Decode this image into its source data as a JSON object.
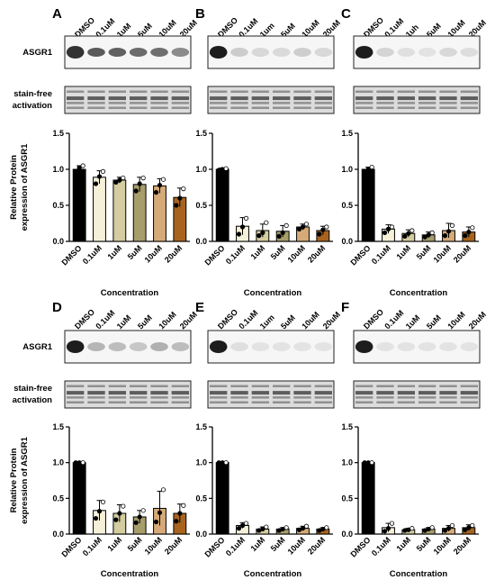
{
  "figure": {
    "row_labels": {
      "blot": "ASGR1",
      "stain": "stain-free activation"
    },
    "ylabel": "Relative Protein expression of ASGR1",
    "xlabel": "Concentration",
    "colors": {
      "DMSO": "#000000",
      "0.1uM": "#f5f0d8",
      "1uM": "#d3cd9f",
      "5uM": "#a69d6b",
      "10uM": "#d6aa78",
      "20uM": "#a8641e"
    }
  },
  "chart_data": [
    {
      "panel": "A",
      "type": "bar",
      "lanes": [
        "DMSO",
        "0.1uM",
        "1uM",
        "5uM",
        "10uM",
        "20uM"
      ],
      "categories": [
        "DMSO",
        "0.1uM",
        "1uM",
        "5uM",
        "10uM",
        "20uM"
      ],
      "values": [
        1.0,
        0.89,
        0.85,
        0.79,
        0.77,
        0.61
      ],
      "errors": [
        0.05,
        0.09,
        0.04,
        0.1,
        0.1,
        0.13
      ],
      "points": [
        [
          0.97,
          1.02,
          1.05
        ],
        [
          0.8,
          0.9,
          0.97
        ],
        [
          0.82,
          0.85,
          0.88
        ],
        [
          0.7,
          0.8,
          0.88
        ],
        [
          0.68,
          0.78,
          0.86
        ],
        [
          0.5,
          0.6,
          0.73
        ]
      ],
      "ylim": [
        0,
        1.5
      ],
      "yticks": [
        0,
        0.5,
        1.0,
        1.5
      ],
      "ytick_labels": [
        "0.0",
        "0.5",
        "1.0",
        "1.5"
      ],
      "xlabel": "Concentration",
      "ylabel": "Relative Protein expression of ASGR1"
    },
    {
      "panel": "B",
      "type": "bar",
      "lanes": [
        "DMSO",
        "0.1uM",
        "1um",
        "5uM",
        "10uM",
        "20uM"
      ],
      "categories": [
        "DMSO",
        "0.1uM",
        "1uM",
        "5uM",
        "10uM",
        "20uM"
      ],
      "values": [
        1.0,
        0.21,
        0.15,
        0.14,
        0.2,
        0.15
      ],
      "errors": [
        0.02,
        0.12,
        0.09,
        0.08,
        0.04,
        0.06
      ],
      "points": [
        [
          0.99,
          1.0,
          1.01
        ],
        [
          0.1,
          0.2,
          0.32
        ],
        [
          0.08,
          0.12,
          0.26
        ],
        [
          0.07,
          0.12,
          0.22
        ],
        [
          0.17,
          0.2,
          0.24
        ],
        [
          0.1,
          0.16,
          0.2
        ]
      ],
      "ylim": [
        0,
        1.5
      ],
      "yticks": [
        0,
        0.5,
        1.0,
        1.5
      ],
      "ytick_labels": [
        "0.0",
        "0.5",
        "1.0",
        "1.5"
      ],
      "xlabel": "Concentration"
    },
    {
      "panel": "C",
      "type": "bar",
      "lanes": [
        "DMSO",
        "0.1uM",
        "1uh",
        "5uM",
        "10uM",
        "20uM"
      ],
      "categories": [
        "DMSO",
        "0.1uM",
        "1uM",
        "5uM",
        "10uM",
        "20uM"
      ],
      "values": [
        1.0,
        0.17,
        0.11,
        0.09,
        0.15,
        0.13
      ],
      "errors": [
        0.03,
        0.06,
        0.05,
        0.04,
        0.1,
        0.07
      ],
      "points": [
        [
          0.97,
          1.0,
          1.03
        ],
        [
          0.12,
          0.17,
          0.2
        ],
        [
          0.07,
          0.11,
          0.15
        ],
        [
          0.06,
          0.09,
          0.12
        ],
        [
          0.08,
          0.14,
          0.22
        ],
        [
          0.08,
          0.13,
          0.19
        ]
      ],
      "ylim": [
        0,
        1.5
      ],
      "yticks": [
        0,
        0.5,
        1.0,
        1.5
      ],
      "ytick_labels": [
        "0.0",
        "0.5",
        "1.0",
        "1.5"
      ],
      "xlabel": "Concentration"
    },
    {
      "panel": "D",
      "type": "bar",
      "lanes": [
        "DMSO",
        "0.1uM",
        "1uM",
        "5uM",
        "10uM",
        "20uM"
      ],
      "categories": [
        "DMSO",
        "0.1uM",
        "1uM",
        "5uM",
        "10uM",
        "20uM"
      ],
      "values": [
        1.0,
        0.33,
        0.29,
        0.24,
        0.36,
        0.29
      ],
      "errors": [
        0.0,
        0.14,
        0.12,
        0.09,
        0.24,
        0.13
      ],
      "points": [
        [
          1.0,
          1.0,
          1.0
        ],
        [
          0.22,
          0.32,
          0.45
        ],
        [
          0.2,
          0.29,
          0.39
        ],
        [
          0.16,
          0.24,
          0.33
        ],
        [
          0.17,
          0.3,
          0.62
        ],
        [
          0.18,
          0.29,
          0.4
        ]
      ],
      "ylim": [
        0,
        1.5
      ],
      "yticks": [
        0,
        0.5,
        1.0,
        1.5
      ],
      "ytick_labels": [
        "0.0",
        "0.5",
        "1.0",
        "1.5"
      ],
      "xlabel": "Concentration",
      "ylabel": "Relative Protein expression of ASGR1"
    },
    {
      "panel": "E",
      "type": "bar",
      "lanes": [
        "DMSO",
        "0.1uM",
        "1um",
        "5uM",
        "10uM",
        "20uM"
      ],
      "categories": [
        "DMSO",
        "0.1uM",
        "1uM",
        "5uM",
        "10uM",
        "20uM"
      ],
      "values": [
        1.0,
        0.12,
        0.07,
        0.07,
        0.08,
        0.07
      ],
      "errors": [
        0.0,
        0.04,
        0.03,
        0.02,
        0.03,
        0.02
      ],
      "points": [
        [
          1.0,
          1.0,
          1.0
        ],
        [
          0.08,
          0.12,
          0.15
        ],
        [
          0.05,
          0.07,
          0.1
        ],
        [
          0.05,
          0.07,
          0.09
        ],
        [
          0.06,
          0.08,
          0.11
        ],
        [
          0.05,
          0.07,
          0.09
        ]
      ],
      "ylim": [
        0,
        1.5
      ],
      "yticks": [
        0,
        0.5,
        1.0,
        1.5
      ],
      "ytick_labels": [
        "0.0",
        "0.5",
        "1.0",
        "1.5"
      ],
      "xlabel": "Concentration"
    },
    {
      "panel": "F",
      "type": "bar",
      "lanes": [
        "DMSO",
        "0.1uM",
        "1uM",
        "5uM",
        "10uM",
        "20uM"
      ],
      "categories": [
        "DMSO",
        "0.1uM",
        "1uM",
        "5uM",
        "10uM",
        "20uM"
      ],
      "values": [
        1.0,
        0.09,
        0.06,
        0.07,
        0.08,
        0.09
      ],
      "errors": [
        0.0,
        0.06,
        0.02,
        0.02,
        0.04,
        0.04
      ],
      "points": [
        [
          1.0,
          1.0,
          1.0
        ],
        [
          0.04,
          0.08,
          0.15
        ],
        [
          0.05,
          0.06,
          0.08
        ],
        [
          0.05,
          0.07,
          0.09
        ],
        [
          0.05,
          0.08,
          0.12
        ],
        [
          0.06,
          0.09,
          0.12
        ]
      ],
      "ylim": [
        0,
        1.5
      ],
      "yticks": [
        0,
        0.5,
        1.0,
        1.5
      ],
      "ytick_labels": [
        "0.0",
        "0.5",
        "1.0",
        "1.5"
      ],
      "xlabel": "Concentration"
    }
  ]
}
